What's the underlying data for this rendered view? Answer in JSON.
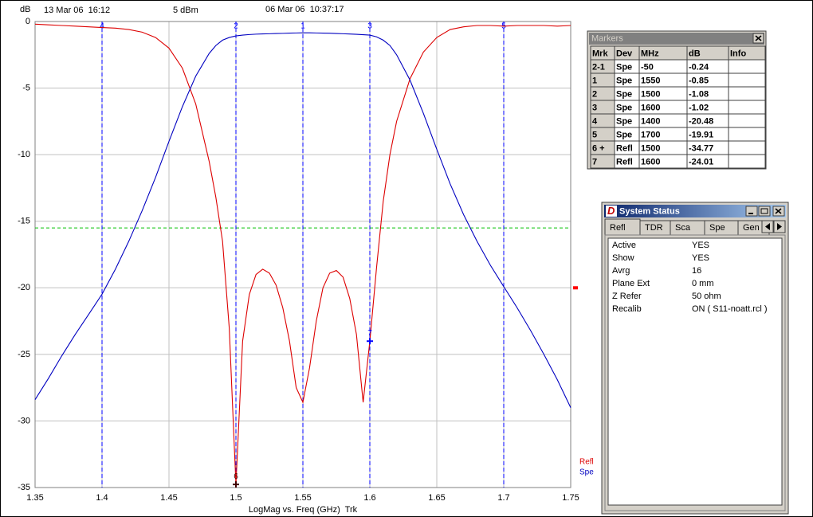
{
  "chart_data": {
    "type": "line",
    "y_label": "dB",
    "x_label": "LogMag vs. Freq (GHz)  Trk",
    "annotations": [
      "13 Mar 06  16:12",
      "5 dBm",
      "06 Mar 06  10:37:17"
    ],
    "xlim": [
      1.35,
      1.75
    ],
    "xticks": [
      1.35,
      1.4,
      1.45,
      1.5,
      1.55,
      1.6,
      1.65,
      1.7,
      1.75
    ],
    "ylim": [
      -35,
      0
    ],
    "yticks": [
      0,
      -5,
      -10,
      -15,
      -20,
      -25,
      -30,
      -35
    ],
    "grid": true,
    "x": [
      1.35,
      1.36,
      1.37,
      1.38,
      1.39,
      1.4,
      1.41,
      1.42,
      1.43,
      1.44,
      1.45,
      1.46,
      1.47,
      1.48,
      1.485,
      1.49,
      1.495,
      1.5,
      1.505,
      1.51,
      1.515,
      1.52,
      1.525,
      1.53,
      1.535,
      1.54,
      1.545,
      1.55,
      1.555,
      1.56,
      1.565,
      1.57,
      1.575,
      1.58,
      1.585,
      1.59,
      1.595,
      1.6,
      1.605,
      1.61,
      1.615,
      1.62,
      1.63,
      1.64,
      1.65,
      1.66,
      1.67,
      1.68,
      1.69,
      1.7,
      1.71,
      1.72,
      1.73,
      1.74,
      1.75
    ],
    "series": [
      {
        "name": "Refl",
        "color": "#dd0000",
        "values": [
          -0.2,
          -0.25,
          -0.3,
          -0.35,
          -0.4,
          -0.45,
          -0.5,
          -0.6,
          -0.8,
          -1.2,
          -2.0,
          -3.5,
          -6.2,
          -10.5,
          -13.2,
          -16.5,
          -23,
          -34.77,
          -24,
          -20.5,
          -19,
          -18.6,
          -18.9,
          -19.8,
          -21.5,
          -24,
          -27.5,
          -28.6,
          -26,
          -22.5,
          -20,
          -18.9,
          -18.7,
          -19.2,
          -20.8,
          -23.5,
          -28.6,
          -24.01,
          -18.5,
          -13.5,
          -10,
          -7.5,
          -4.3,
          -2.3,
          -1.2,
          -0.6,
          -0.4,
          -0.3,
          -0.3,
          -0.35,
          -0.3,
          -0.3,
          -0.3,
          -0.35,
          -0.3
        ]
      },
      {
        "name": "Spe",
        "color": "#0000c0",
        "values": [
          -28.4,
          -26.8,
          -25.1,
          -23.5,
          -22.0,
          -20.48,
          -18.6,
          -16.5,
          -14.2,
          -11.7,
          -9.0,
          -6.4,
          -4.1,
          -2.4,
          -1.8,
          -1.4,
          -1.2,
          -1.08,
          -1.02,
          -0.98,
          -0.95,
          -0.93,
          -0.92,
          -0.9,
          -0.89,
          -0.87,
          -0.86,
          -0.85,
          -0.85,
          -0.86,
          -0.87,
          -0.88,
          -0.9,
          -0.92,
          -0.94,
          -0.96,
          -0.99,
          -1.02,
          -1.15,
          -1.4,
          -1.8,
          -2.5,
          -4.4,
          -6.9,
          -9.6,
          -12.2,
          -14.5,
          -16.5,
          -18.3,
          -19.91,
          -21.5,
          -23.2,
          -25.0,
          -26.9,
          -29.0
        ]
      }
    ],
    "marker_lines": [
      {
        "label": "4",
        "x": 1.4
      },
      {
        "label": "2",
        "x": 1.5
      },
      {
        "label": "1",
        "x": 1.55
      },
      {
        "label": "3",
        "x": 1.6
      },
      {
        "label": "5",
        "x": 1.7
      }
    ],
    "marker_points": [
      {
        "label": "6",
        "x": 1.5,
        "y": -34.77,
        "color": "#400000"
      },
      {
        "label": "7",
        "x": 1.6,
        "y": -24.01,
        "color": "#0000ff"
      }
    ],
    "limit_line": {
      "y": -15.5,
      "color": "#00c000"
    },
    "ref_level": {
      "y": -20,
      "color": "#ff0000"
    },
    "marker_line_color": "#0000ff",
    "grid_color": "#c0c0c0"
  },
  "markers_window": {
    "title": "Markers",
    "columns": [
      "Mrk",
      "Dev",
      "MHz",
      "dB",
      "Info"
    ],
    "rows": [
      [
        "2-1",
        "Spe",
        "-50",
        "-0.24",
        ""
      ],
      [
        "1",
        "Spe",
        "1550",
        "-0.85",
        ""
      ],
      [
        "2",
        "Spe",
        "1500",
        "-1.08",
        ""
      ],
      [
        "3",
        "Spe",
        "1600",
        "-1.02",
        ""
      ],
      [
        "4",
        "Spe",
        "1400",
        "-20.48",
        ""
      ],
      [
        "5",
        "Spe",
        "1700",
        "-19.91",
        ""
      ],
      [
        "6 +",
        "Refl",
        "1500",
        "-34.77",
        ""
      ],
      [
        "7",
        "Refl",
        "1600",
        "-24.01",
        ""
      ]
    ]
  },
  "status_window": {
    "title": "System Status",
    "icon": "D",
    "tabs": [
      "Refl",
      "TDR",
      "Sca",
      "Spe",
      "Gen"
    ],
    "rows": [
      [
        "Active",
        "YES"
      ],
      [
        "Show",
        "YES"
      ],
      [
        "Avrg",
        "16"
      ],
      [
        "Plane Ext",
        "0 mm"
      ],
      [
        "Z Refer",
        "50 ohm"
      ],
      [
        "Recalib",
        "ON ( S11-noatt.rcl )"
      ]
    ]
  }
}
